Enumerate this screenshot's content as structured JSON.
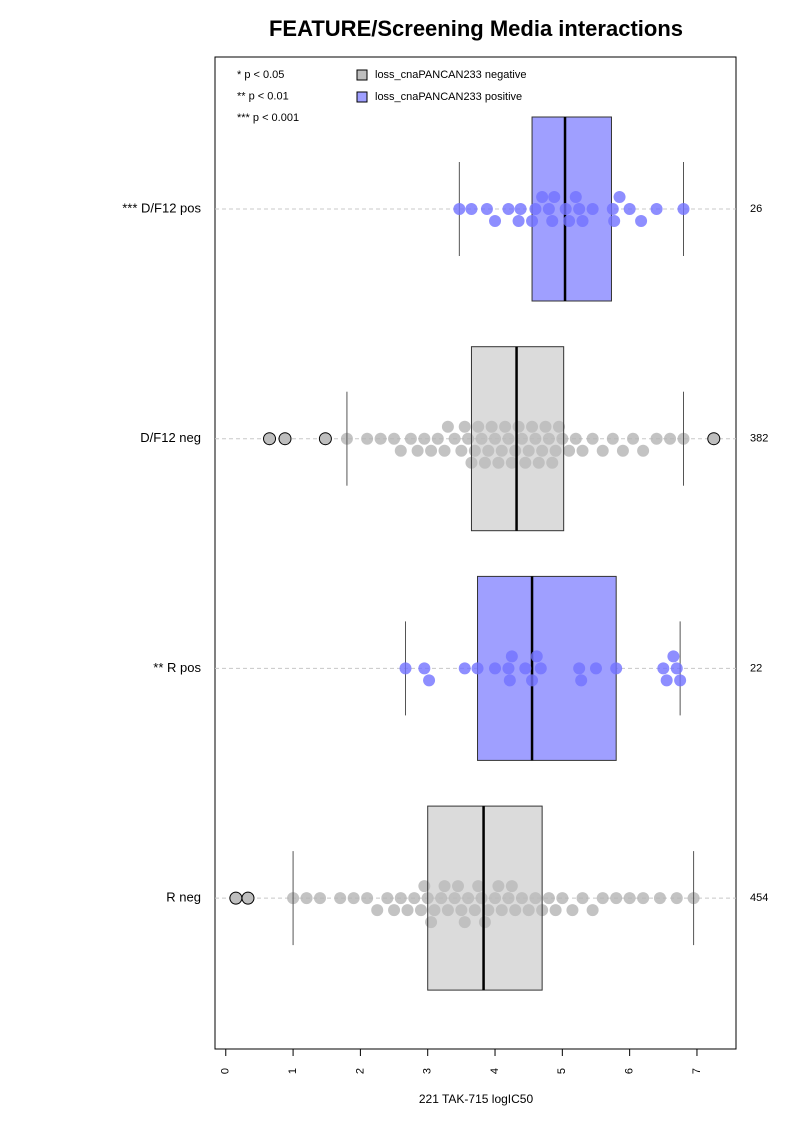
{
  "chart_data": {
    "type": "box",
    "title": "FEATURE/Screening Media interactions",
    "xlabel": "221 TAK-715 logIC50",
    "xlim": [
      -0.16,
      7.58
    ],
    "xticks": [
      0,
      1,
      2,
      3,
      4,
      5,
      6,
      7
    ],
    "annotations": [
      "* p < 0.05",
      "** p < 0.01",
      "*** p < 0.001"
    ],
    "legend": [
      {
        "name": "loss_cnaPANCAN233 negative",
        "color": "#bebebe"
      },
      {
        "name": "loss_cnaPANCAN233 positive",
        "color": "#9f9fff"
      }
    ],
    "groups": [
      {
        "label": "*** D/F12 pos",
        "n": "26",
        "color": "#9f9fff",
        "point_color": "#7272ff",
        "whisker_low": 3.47,
        "q1": 4.55,
        "median": 5.04,
        "q3": 5.73,
        "whisker_high": 6.8,
        "outliers": [],
        "points": [
          3.47,
          3.65,
          3.88,
          4.0,
          4.2,
          4.35,
          4.38,
          4.55,
          4.6,
          4.7,
          4.8,
          4.85,
          4.88,
          5.05,
          5.1,
          5.2,
          5.25,
          5.3,
          5.45,
          5.75,
          5.77,
          5.85,
          6.0,
          6.17,
          6.4,
          6.8
        ]
      },
      {
        "label": "D/F12 neg",
        "n": "382",
        "color": "#bebebe",
        "point_color": "#b4b4b4",
        "whisker_low": 1.8,
        "q1": 3.65,
        "median": 4.32,
        "q3": 5.02,
        "whisker_high": 6.8,
        "outliers": [
          0.65,
          0.88,
          1.48,
          7.25
        ],
        "points": [
          1.8,
          2.1,
          2.3,
          2.5,
          2.6,
          2.75,
          2.85,
          2.95,
          3.05,
          3.15,
          3.25,
          3.3,
          3.4,
          3.5,
          3.55,
          3.6,
          3.65,
          3.7,
          3.75,
          3.8,
          3.85,
          3.9,
          3.95,
          4.0,
          4.05,
          4.1,
          4.15,
          4.2,
          4.25,
          4.3,
          4.35,
          4.4,
          4.45,
          4.5,
          4.55,
          4.6,
          4.65,
          4.7,
          4.75,
          4.8,
          4.85,
          4.9,
          4.95,
          5.0,
          5.1,
          5.2,
          5.3,
          5.45,
          5.6,
          5.75,
          5.9,
          6.05,
          6.2,
          6.4,
          6.6,
          6.8
        ]
      },
      {
        "label": "** R pos",
        "n": "22",
        "color": "#9f9fff",
        "point_color": "#7272ff",
        "whisker_low": 2.67,
        "q1": 3.74,
        "median": 4.55,
        "q3": 5.8,
        "whisker_high": 6.75,
        "outliers": [],
        "points": [
          2.67,
          2.95,
          3.02,
          3.55,
          3.74,
          4.0,
          4.2,
          4.22,
          4.25,
          4.45,
          4.55,
          4.62,
          4.68,
          5.25,
          5.28,
          5.5,
          5.8,
          6.5,
          6.55,
          6.65,
          6.7,
          6.75
        ]
      },
      {
        "label": "R neg",
        "n": "454",
        "color": "#bebebe",
        "point_color": "#b4b4b4",
        "whisker_low": 1.0,
        "q1": 3.0,
        "median": 3.83,
        "q3": 4.7,
        "whisker_high": 6.95,
        "outliers": [
          0.15,
          0.33
        ],
        "points": [
          1.0,
          1.2,
          1.4,
          1.7,
          1.9,
          2.1,
          2.25,
          2.4,
          2.5,
          2.6,
          2.7,
          2.8,
          2.9,
          2.95,
          3.0,
          3.05,
          3.1,
          3.2,
          3.25,
          3.3,
          3.4,
          3.45,
          3.5,
          3.55,
          3.6,
          3.7,
          3.75,
          3.8,
          3.85,
          3.9,
          4.0,
          4.05,
          4.1,
          4.2,
          4.25,
          4.3,
          4.4,
          4.5,
          4.6,
          4.7,
          4.8,
          4.9,
          5.0,
          5.15,
          5.3,
          5.45,
          5.6,
          5.8,
          6.0,
          6.2,
          6.45,
          6.7,
          6.95
        ]
      }
    ]
  }
}
